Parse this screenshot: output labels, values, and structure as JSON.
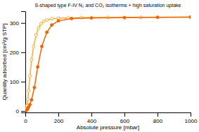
{
  "chart_data": {
    "type": "line",
    "title": "S-shaped type F-IV N₂ and CO₂ isotherms + high saturation uptake",
    "x_label": "Absolute pressure [mbar]",
    "y_label": "Quantity adsorbed [cm³/g STP]",
    "xlim": [
      0,
      1000
    ],
    "ylim": [
      -5,
      340
    ],
    "xticks": [
      0,
      200,
      400,
      600,
      800,
      1000
    ],
    "yticks": [
      0,
      100,
      200,
      300
    ],
    "grid": false,
    "series": [
      {
        "color": "#ffaa33",
        "marker": "circle-open",
        "x": [
          0,
          3,
          6,
          10,
          15,
          20,
          28,
          38,
          50,
          65,
          80,
          95,
          110,
          130,
          160,
          200,
          260,
          340,
          500,
          700,
          1000
        ],
        "values": [
          0,
          3,
          8,
          18,
          40,
          70,
          120,
          175,
          220,
          258,
          283,
          297,
          305,
          310,
          314,
          316,
          317,
          318,
          319,
          319,
          320
        ]
      },
      {
        "color": "#ee6600",
        "marker": "circle",
        "x": [
          0,
          3,
          6,
          10,
          15,
          20,
          28,
          38,
          55,
          75,
          100,
          130,
          160,
          200,
          280,
          400,
          600,
          800,
          1000
        ],
        "values": [
          0,
          1,
          2,
          4,
          8,
          14,
          22,
          38,
          80,
          150,
          220,
          268,
          293,
          307,
          315,
          317,
          318,
          319,
          320
        ]
      }
    ]
  }
}
